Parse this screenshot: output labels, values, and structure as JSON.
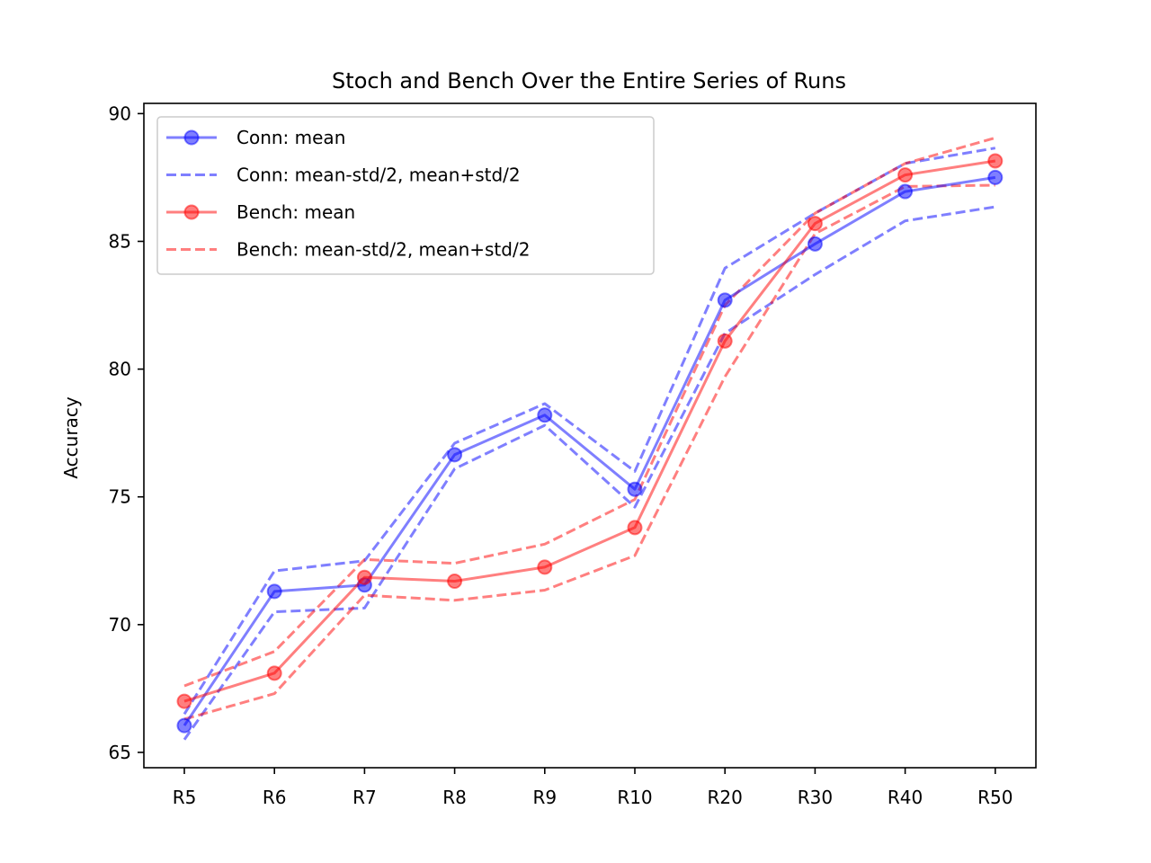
{
  "chart_data": {
    "type": "line",
    "title": "Stoch and Bench Over the Entire Series of Runs",
    "xlabel": "",
    "ylabel": "Accuracy",
    "categories": [
      "R5",
      "R6",
      "R7",
      "R8",
      "R9",
      "R10",
      "R20",
      "R30",
      "R40",
      "R50"
    ],
    "ylim": [
      64.4,
      90.4
    ],
    "yticks": [
      65,
      70,
      75,
      80,
      85,
      90
    ],
    "grid": false,
    "legend_position": "top-left",
    "series": [
      {
        "name": "Conn: mean",
        "color": "#0000ff",
        "style": "solid-markers",
        "values": [
          66.05,
          71.3,
          71.55,
          76.65,
          78.2,
          75.3,
          82.7,
          84.9,
          86.95,
          87.5
        ]
      },
      {
        "name": "Conn: mean-std/2, mean+std/2",
        "color": "#0000ff",
        "style": "dashed",
        "bands": [
          [
            65.5,
            70.5,
            70.65,
            76.1,
            77.8,
            74.6,
            81.4,
            83.7,
            85.8,
            86.35
          ],
          [
            66.5,
            72.1,
            72.5,
            77.1,
            78.65,
            76.0,
            83.95,
            86.1,
            88.05,
            88.65
          ]
        ]
      },
      {
        "name": "Bench: mean",
        "color": "#ff0000",
        "style": "solid-markers",
        "values": [
          67.0,
          68.1,
          71.85,
          71.7,
          72.25,
          73.8,
          81.1,
          85.7,
          87.6,
          88.15
        ]
      },
      {
        "name": "Bench: mean-std/2, mean+std/2",
        "color": "#ff0000",
        "style": "dashed",
        "bands": [
          [
            66.3,
            67.3,
            71.15,
            70.95,
            71.35,
            72.7,
            79.7,
            85.3,
            87.15,
            87.2
          ],
          [
            67.6,
            68.95,
            72.55,
            72.4,
            73.15,
            74.9,
            82.5,
            86.1,
            88.05,
            89.05
          ]
        ]
      }
    ]
  }
}
